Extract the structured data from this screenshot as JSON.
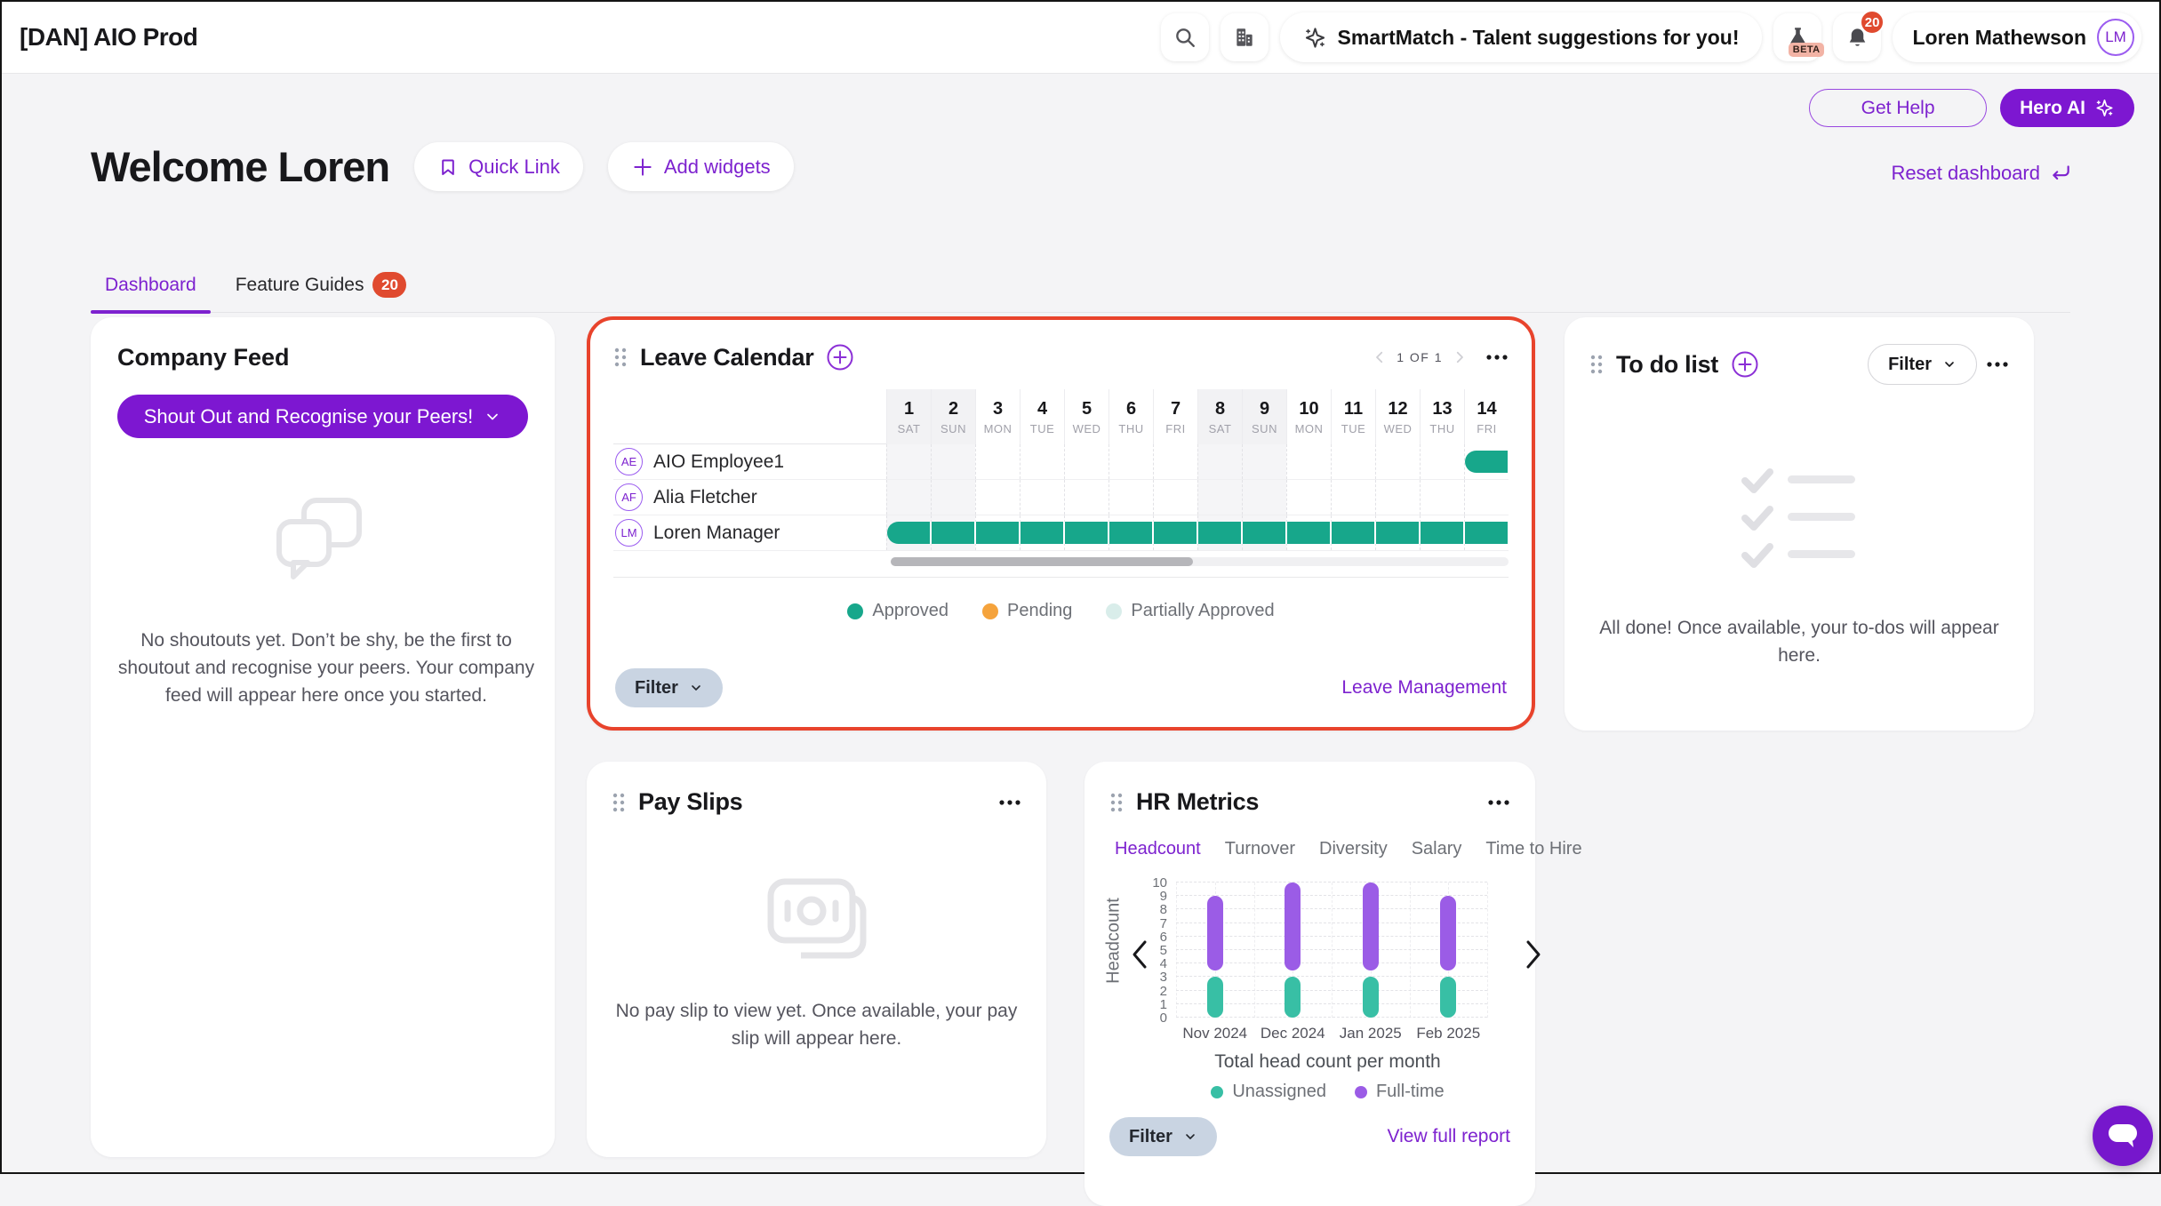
{
  "header": {
    "app_title": "[DAN] AIO Prod",
    "smartmatch_label": "SmartMatch - Talent suggestions for you!",
    "beta_label": "BETA",
    "notification_count": "20",
    "user_name": "Loren Mathewson",
    "user_initials": "LM"
  },
  "actions": {
    "get_help": "Get Help",
    "hero_ai": "Hero AI",
    "reset_dashboard": "Reset dashboard"
  },
  "welcome": {
    "title": "Welcome Loren",
    "quick_link": "Quick Link",
    "add_widgets": "Add widgets"
  },
  "tabs": [
    {
      "label": "Dashboard",
      "active": true
    },
    {
      "label": "Feature Guides",
      "badge": "20"
    }
  ],
  "company_feed": {
    "title": "Company Feed",
    "shoutout_button": "Shout Out and Recognise your Peers!",
    "empty_text": "No shoutouts yet. Don’t be shy, be the first to shoutout and recognise your peers. Your company feed will appear here once you started."
  },
  "leave_calendar": {
    "title": "Leave Calendar",
    "pagination": "1 OF 1",
    "days": [
      {
        "num": "1",
        "dow": "SAT"
      },
      {
        "num": "2",
        "dow": "SUN"
      },
      {
        "num": "3",
        "dow": "MON"
      },
      {
        "num": "4",
        "dow": "TUE"
      },
      {
        "num": "5",
        "dow": "WED"
      },
      {
        "num": "6",
        "dow": "THU"
      },
      {
        "num": "7",
        "dow": "FRI"
      },
      {
        "num": "8",
        "dow": "SAT"
      },
      {
        "num": "9",
        "dow": "SUN"
      },
      {
        "num": "10",
        "dow": "MON"
      },
      {
        "num": "11",
        "dow": "TUE"
      },
      {
        "num": "12",
        "dow": "WED"
      },
      {
        "num": "13",
        "dow": "THU"
      },
      {
        "num": "14",
        "dow": "FRI"
      }
    ],
    "rows": [
      {
        "initials": "AE",
        "name": "AIO Employee1",
        "leave": {
          "start_day": 14,
          "end_day": 14,
          "status": "approved"
        }
      },
      {
        "initials": "AF",
        "name": "Alia Fletcher",
        "leave": null
      },
      {
        "initials": "LM",
        "name": "Loren Manager",
        "leave": {
          "start_day": 1,
          "end_day": 14,
          "status": "approved"
        }
      }
    ],
    "legend": [
      {
        "label": "Approved",
        "color": "#17a78b"
      },
      {
        "label": "Pending",
        "color": "#f5a33c"
      },
      {
        "label": "Partially Approved",
        "color": "#d9edea"
      }
    ],
    "filter_label": "Filter",
    "link_label": "Leave Management"
  },
  "todo": {
    "title": "To do list",
    "filter_label": "Filter",
    "empty_text": "All done! Once available, your to-dos will appear here."
  },
  "pay_slips": {
    "title": "Pay Slips",
    "empty_text": "No pay slip to view yet. Once available, your pay slip will appear here."
  },
  "hr_metrics": {
    "title": "HR Metrics",
    "tabs": [
      "Headcount",
      "Turnover",
      "Diversity",
      "Salary",
      "Time to Hire"
    ],
    "active_tab": "Headcount",
    "filter_label": "Filter",
    "link_label": "View full report"
  },
  "chart_data": {
    "type": "bar",
    "stacked": true,
    "categories": [
      "Nov 2024",
      "Dec 2024",
      "Jan 2025",
      "Feb 2025"
    ],
    "series": [
      {
        "name": "Unassigned",
        "color": "#38bfa5",
        "values": [
          3,
          3,
          3,
          3
        ]
      },
      {
        "name": "Full-time",
        "color": "#9b5ce6",
        "values": [
          6,
          7,
          7,
          6
        ]
      }
    ],
    "title": "Total head count per month",
    "xlabel": "",
    "ylabel": "Headcount",
    "ylim": [
      0,
      10
    ],
    "grid": true,
    "legend_position": "bottom"
  }
}
